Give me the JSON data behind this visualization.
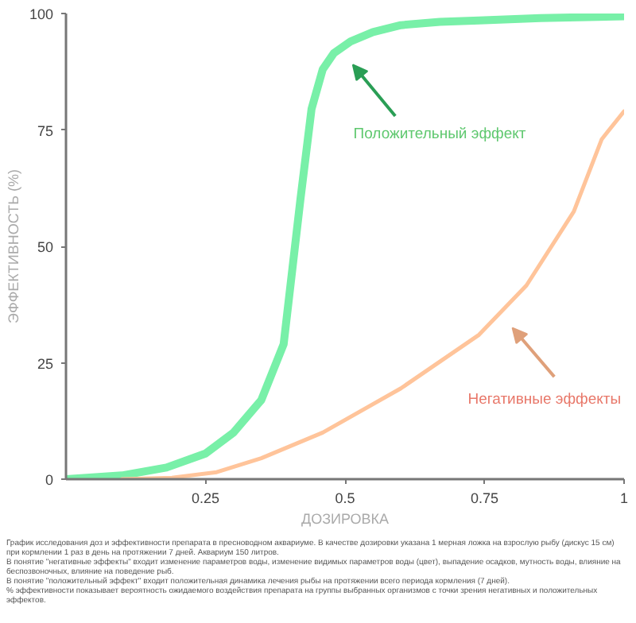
{
  "chart_data": {
    "type": "line",
    "xlabel": "ДОЗИРОВКА",
    "ylabel": "ЭФФЕКТИВНОСТЬ (%)",
    "xlim": [
      0,
      1
    ],
    "ylim": [
      0,
      100
    ],
    "xticks": [
      0.25,
      0.5,
      0.75,
      1
    ],
    "yticks": [
      0,
      25,
      50,
      75,
      100
    ],
    "grid": false,
    "line_style": "solid",
    "marker": "none",
    "series": [
      {
        "color": "#78f0a8",
        "x": [
          0,
          0.1,
          0.18,
          0.25,
          0.3,
          0.35,
          0.39,
          0.42,
          0.44,
          0.46,
          0.48,
          0.51,
          0.55,
          0.6,
          0.67,
          0.74,
          0.85,
          1
        ],
        "values": [
          0,
          0.8,
          2.5,
          5.5,
          10,
          17,
          29,
          60,
          79.5,
          88,
          91.5,
          94,
          96,
          97.5,
          98.2,
          98.5,
          99,
          99.4
        ]
      },
      {
        "color": "#ffc49a",
        "x": [
          0.1,
          0.19,
          0.27,
          0.35,
          0.46,
          0.6,
          0.74,
          0.825,
          0.91,
          0.96,
          1
        ],
        "values": [
          0,
          0.3,
          1.5,
          4.5,
          10,
          19.5,
          31,
          41.6,
          57.5,
          73,
          79
        ]
      }
    ],
    "annotations": [
      "Положительный эффект",
      "Негативные эффекты",
      "График исследования доз и эффективности препарата в пресноводном аквариуме. В качестве дозировки указана 1 мерная ложка на взрослую рыбу (дискус 15 см) при кормлении 1 раз в день на протяжении 7 дней. Аквариум 150 литров.",
      "В понятие \"негативные эффекты\" входит изменение параметров воды, изменение видимых параметров воды (цвет), выпадение осадков, мутность воды, влияние на беспозвоночных, влияние на поведение рыб.",
      "В понятие \"положительный эффект\" входит положительная динамика лечения рыбы на протяжении всего периода кормления (7 дней).",
      "% эффективности показывает вероятность ожидаемого воздействия препарата на группы выбранных организмов с точки зрения негативных и положительных эффектов."
    ]
  }
}
